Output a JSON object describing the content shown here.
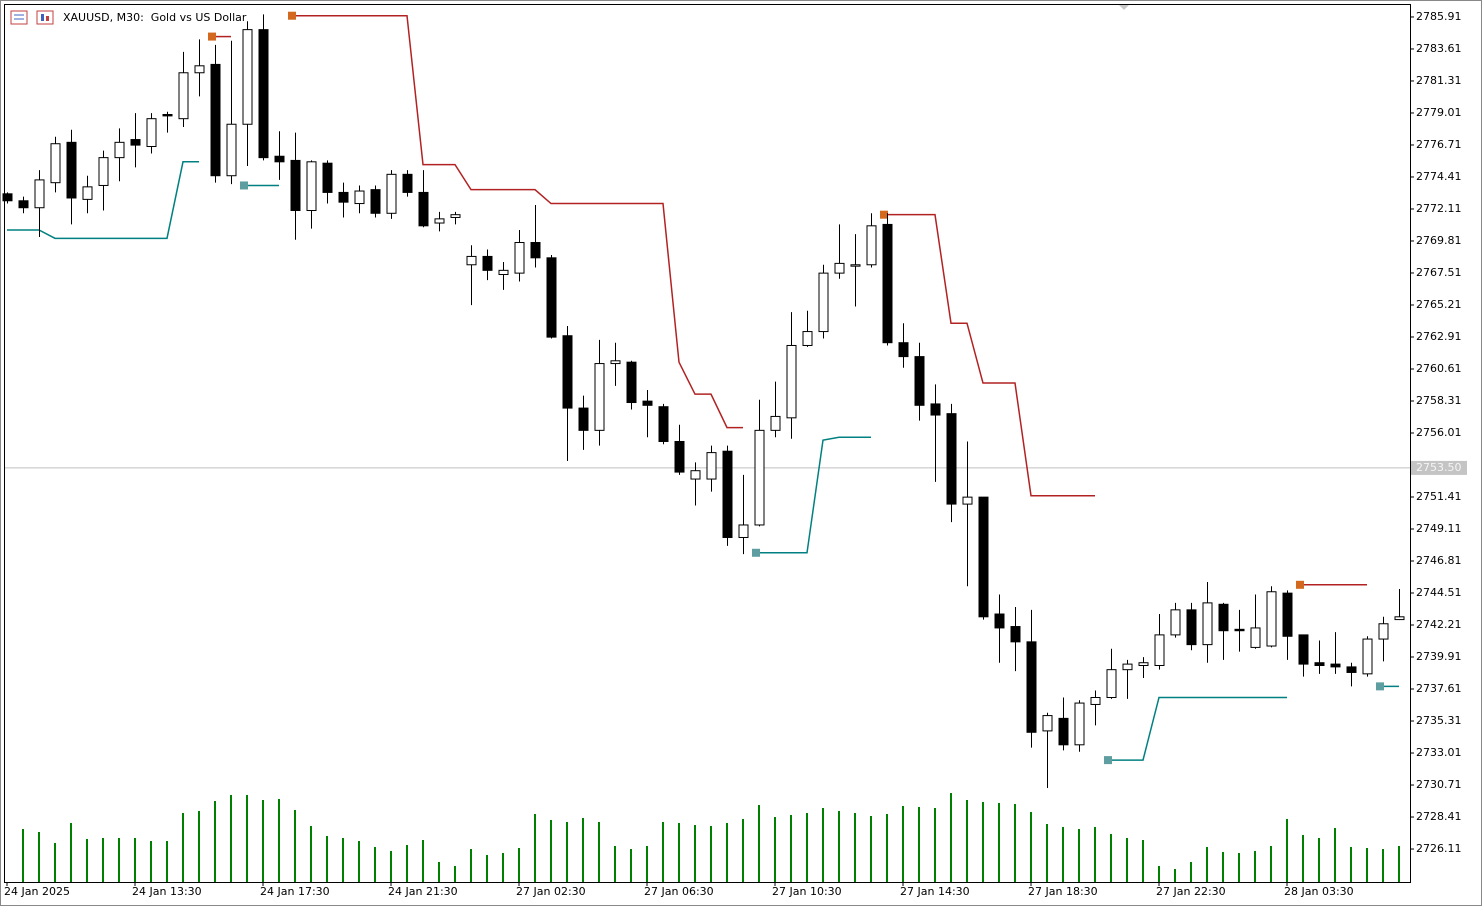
{
  "chart_data": {
    "type": "candlestick",
    "title": "XAUUSD, M30:  Gold vs US Dollar",
    "categories": [
      "24 Jan 2025",
      null,
      null,
      null,
      null,
      null,
      null,
      null,
      "24 Jan 13:30",
      null,
      null,
      null,
      null,
      null,
      null,
      null,
      "24 Jan 17:30",
      null,
      null,
      null,
      null,
      null,
      null,
      null,
      "24 Jan 21:30",
      null,
      null,
      null,
      null,
      null,
      null,
      null,
      "27 Jan 02:30",
      null,
      null,
      null,
      null,
      null,
      null,
      null,
      "27 Jan 06:30",
      null,
      null,
      null,
      null,
      null,
      null,
      null,
      "27 Jan 10:30",
      null,
      null,
      null,
      null,
      null,
      null,
      null,
      "27 Jan 14:30",
      null,
      null,
      null,
      null,
      null,
      null,
      null,
      "27 Jan 18:30",
      null,
      null,
      null,
      null,
      null,
      null,
      null,
      "27 Jan 22:30",
      null,
      null,
      null,
      null,
      null,
      null,
      null,
      "28 Jan 03:30",
      null,
      null,
      null,
      null,
      null,
      null,
      null
    ],
    "open": [
      2773.2,
      2772.7,
      2772.2,
      2774.0,
      2776.9,
      2772.8,
      2773.8,
      2775.8,
      2777.1,
      2776.6,
      2778.9,
      2778.6,
      2781.9,
      2782.5,
      2774.5,
      2778.2,
      2785.0,
      2775.9,
      2775.6,
      2772.0,
      2775.4,
      2773.3,
      2772.5,
      2773.5,
      2771.8,
      2774.6,
      2773.3,
      2771.1,
      2771.5,
      2768.1,
      2768.7,
      2767.4,
      2767.5,
      2769.7,
      2768.6,
      2763.0,
      2757.8,
      2756.2,
      2761.0,
      2761.1,
      2758.3,
      2757.9,
      2755.4,
      2752.7,
      2752.7,
      2754.7,
      2748.5,
      2749.4,
      2756.2,
      2757.1,
      2762.3,
      2763.3,
      2767.5,
      2768.0,
      2768.1,
      2771.0,
      2762.5,
      2761.5,
      2758.1,
      2757.4,
      2750.9,
      2751.4,
      2743.0,
      2742.1,
      2741.0,
      2734.6,
      2735.5,
      2733.6,
      2736.5,
      2737.0,
      2739.0,
      2739.3,
      2739.3,
      2741.5,
      2743.3,
      2740.8,
      2743.7,
      2741.9,
      2740.6,
      2740.7,
      2744.5,
      2741.5,
      2739.5,
      2739.4,
      2739.2,
      2738.7,
      2741.2,
      2742.6
    ],
    "high": [
      2773.3,
      2773.0,
      2774.9,
      2777.3,
      2777.8,
      2774.5,
      2776.3,
      2777.9,
      2779.0,
      2779.0,
      2779.1,
      2783.4,
      2784.3,
      2783.9,
      2784.2,
      2785.6,
      2786.1,
      2777.7,
      2777.6,
      2775.6,
      2775.6,
      2774.0,
      2773.8,
      2773.8,
      2774.9,
      2774.9,
      2774.9,
      2771.9,
      2771.9,
      2769.5,
      2769.2,
      2768.3,
      2770.6,
      2772.4,
      2768.8,
      2763.7,
      2758.7,
      2762.7,
      2762.5,
      2761.2,
      2759.1,
      2758.1,
      2756.6,
      2753.9,
      2755.1,
      2755.1,
      2753.0,
      2758.4,
      2759.7,
      2764.7,
      2764.8,
      2768.1,
      2771.0,
      2770.3,
      2771.8,
      2771.8,
      2763.9,
      2762.5,
      2759.5,
      2758.1,
      2755.4,
      2751.4,
      2744.4,
      2743.5,
      2743.3,
      2735.9,
      2737.0,
      2736.8,
      2737.5,
      2740.5,
      2739.7,
      2739.9,
      2743.0,
      2743.8,
      2743.8,
      2745.3,
      2743.8,
      2743.3,
      2744.4,
      2745.0,
      2744.7,
      2741.5,
      2741.1,
      2741.7,
      2739.5,
      2741.4,
      2742.8,
      2744.8
    ],
    "low": [
      2772.5,
      2771.8,
      2770.1,
      2773.3,
      2771.0,
      2771.8,
      2772.0,
      2774.1,
      2775.1,
      2776.1,
      2777.6,
      2778.0,
      2780.2,
      2774.0,
      2773.9,
      2775.2,
      2775.6,
      2774.2,
      2769.9,
      2770.7,
      2772.5,
      2771.5,
      2771.8,
      2771.5,
      2771.4,
      2773.0,
      2770.8,
      2770.5,
      2771.0,
      2765.2,
      2767.0,
      2766.3,
      2766.9,
      2767.9,
      2762.8,
      2754.0,
      2754.8,
      2755.1,
      2759.4,
      2757.7,
      2755.7,
      2755.2,
      2753.0,
      2750.8,
      2751.8,
      2747.9,
      2747.3,
      2749.3,
      2755.7,
      2755.6,
      2762.2,
      2762.8,
      2767.1,
      2765.1,
      2767.9,
      2762.3,
      2760.7,
      2756.9,
      2752.5,
      2749.6,
      2745.0,
      2742.6,
      2739.5,
      2738.9,
      2733.4,
      2730.5,
      2733.2,
      2733.1,
      2735.0,
      2736.9,
      2736.9,
      2738.4,
      2739.0,
      2741.3,
      2740.4,
      2739.5,
      2739.7,
      2740.3,
      2740.5,
      2740.6,
      2739.7,
      2738.5,
      2738.7,
      2738.7,
      2737.8,
      2738.5,
      2739.6,
      2742.6
    ],
    "close": [
      2772.7,
      2772.2,
      2774.2,
      2776.8,
      2772.9,
      2773.7,
      2775.8,
      2776.9,
      2776.7,
      2778.6,
      2778.8,
      2781.9,
      2782.4,
      2774.5,
      2778.2,
      2785.0,
      2775.8,
      2775.5,
      2772.0,
      2775.5,
      2773.3,
      2772.6,
      2773.4,
      2771.8,
      2774.6,
      2773.3,
      2770.9,
      2771.4,
      2771.7,
      2768.7,
      2767.7,
      2767.7,
      2769.7,
      2768.6,
      2762.9,
      2757.8,
      2756.2,
      2761.0,
      2761.2,
      2758.2,
      2758.0,
      2755.4,
      2753.2,
      2753.3,
      2754.6,
      2748.5,
      2749.4,
      2756.2,
      2757.2,
      2762.3,
      2763.3,
      2767.5,
      2768.2,
      2768.1,
      2770.9,
      2762.5,
      2761.5,
      2758.0,
      2757.3,
      2750.9,
      2751.4,
      2742.8,
      2742.0,
      2741.0,
      2734.5,
      2735.7,
      2733.6,
      2736.6,
      2737.0,
      2739.0,
      2739.4,
      2739.5,
      2741.5,
      2743.3,
      2740.8,
      2743.8,
      2741.8,
      2741.8,
      2742.0,
      2744.6,
      2741.4,
      2739.4,
      2739.3,
      2739.2,
      2738.8,
      2741.2,
      2742.3,
      2742.8
    ],
    "volume": [
      null,
      53,
      50,
      39,
      59,
      43,
      44,
      44,
      44,
      41,
      41,
      69,
      71,
      81,
      87,
      87,
      82,
      83,
      72,
      56,
      46,
      44,
      41,
      35,
      31,
      37,
      42,
      20,
      16,
      33,
      27,
      29,
      34,
      68,
      62,
      60,
      64,
      60,
      36,
      33,
      36,
      60,
      59,
      57,
      56,
      59,
      63,
      77,
      65,
      67,
      69,
      74,
      71,
      69,
      66,
      68,
      76,
      75,
      74,
      89,
      82,
      80,
      79,
      78,
      70,
      58,
      55,
      53,
      55,
      48,
      44,
      42,
      16,
      13,
      20,
      35,
      30,
      29,
      31,
      36,
      63,
      47,
      44,
      54,
      35,
      34,
      33,
      36
    ],
    "lines": [
      {
        "color": "#b22222",
        "marker_color": "#d2691e",
        "values": [
          null,
          null,
          null,
          null,
          null,
          null,
          null,
          null,
          null,
          null,
          null,
          null,
          null,
          2784.5,
          2784.5,
          null,
          null,
          null,
          2786.0,
          2786.0,
          2786.0,
          2786.0,
          2786.0,
          2786.0,
          2786.0,
          2786.0,
          2775.3,
          2775.3,
          2775.3,
          2773.5,
          2773.5,
          2773.5,
          2773.5,
          2773.5,
          2772.5,
          2772.5,
          2772.5,
          2772.5,
          2772.5,
          2772.5,
          2772.5,
          2772.5,
          2761.1,
          2758.8,
          2758.8,
          2756.4,
          2756.4,
          null,
          null,
          null,
          null,
          null,
          null,
          null,
          null,
          2771.7,
          2771.7,
          2771.7,
          2771.7,
          2763.9,
          2763.9,
          2759.6,
          2759.6,
          2759.6,
          2751.5,
          2751.5,
          2751.5,
          2751.5,
          2751.5,
          null,
          null,
          null,
          null,
          null,
          null,
          null,
          null,
          null,
          null,
          null,
          null,
          2745.1,
          2745.1,
          2745.1,
          2745.1,
          2745.1,
          null,
          null
        ]
      },
      {
        "color": "#008080",
        "marker_color": "#5f9ea0",
        "values": [
          2770.6,
          2770.6,
          2770.6,
          2770.0,
          2770.0,
          2770.0,
          2770.0,
          2770.0,
          2770.0,
          2770.0,
          2770.0,
          2775.5,
          2775.5,
          null,
          null,
          2773.8,
          2773.8,
          2773.8,
          null,
          null,
          null,
          null,
          null,
          null,
          null,
          null,
          null,
          null,
          null,
          null,
          null,
          null,
          null,
          null,
          null,
          null,
          null,
          null,
          null,
          null,
          null,
          null,
          null,
          null,
          null,
          null,
          null,
          2747.4,
          2747.4,
          2747.4,
          2747.4,
          2755.5,
          2755.7,
          2755.7,
          2755.7,
          null,
          null,
          null,
          null,
          null,
          null,
          null,
          null,
          null,
          null,
          null,
          null,
          null,
          null,
          2732.5,
          2732.5,
          2732.5,
          2737.0,
          2737.0,
          2737.0,
          2737.0,
          2737.0,
          2737.0,
          2737.0,
          2737.0,
          2737.0,
          null,
          null,
          null,
          null,
          null,
          2737.8,
          2737.8
        ]
      }
    ],
    "bull_color": "#ffffff",
    "bear_color": "#000000",
    "volume_color": "#008000",
    "current_price": {
      "value": 2753.5,
      "label": "2753.50"
    },
    "ylim": [
      2723.74,
      2786.77
    ],
    "yticks": [
      2785.91,
      2783.61,
      2781.31,
      2779.01,
      2776.71,
      2774.41,
      2772.11,
      2769.81,
      2767.51,
      2765.21,
      2762.91,
      2760.61,
      2758.31,
      2756.01,
      2751.41,
      2749.11,
      2746.81,
      2744.51,
      2742.21,
      2739.91,
      2737.61,
      2735.31,
      2733.01,
      2730.71,
      2728.41,
      2726.11
    ]
  }
}
